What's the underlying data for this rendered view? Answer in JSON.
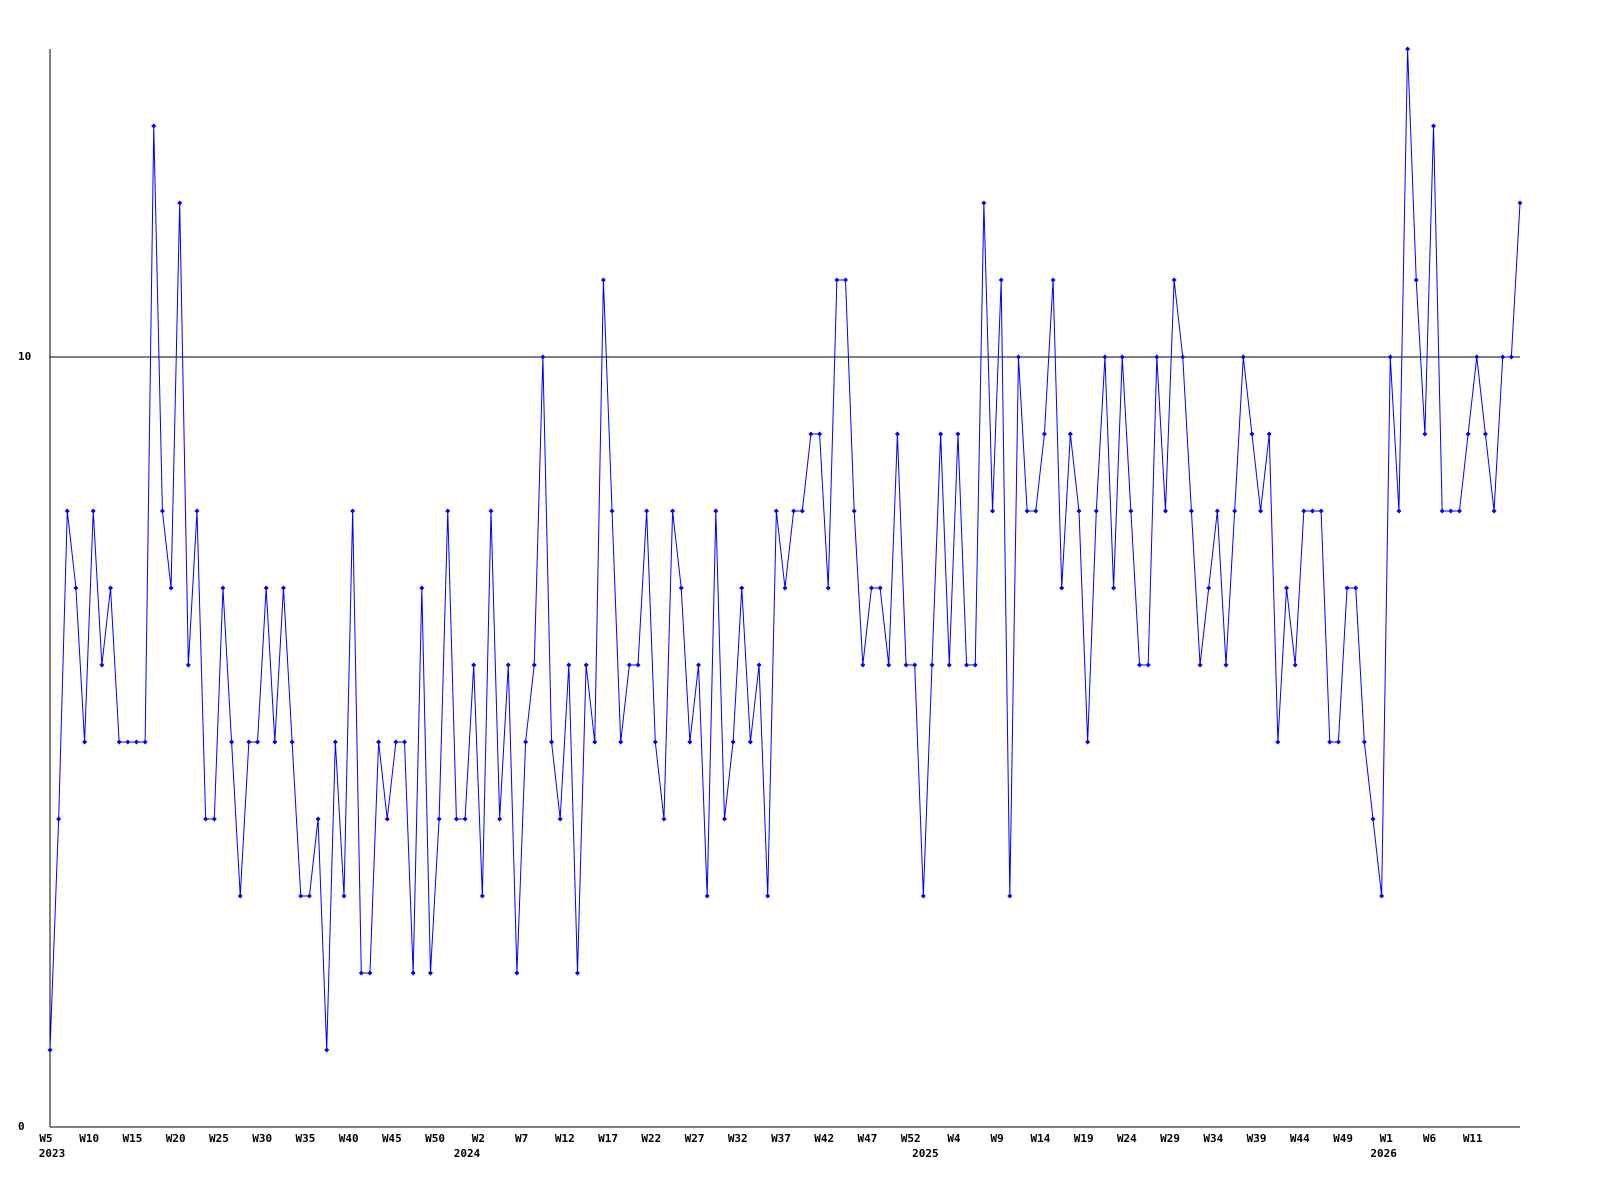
{
  "chart_data": {
    "type": "line",
    "categories": [
      "W5",
      null,
      null,
      null,
      null,
      "W10",
      null,
      null,
      null,
      null,
      "W15",
      null,
      null,
      null,
      null,
      "W20",
      null,
      null,
      null,
      null,
      "W25",
      null,
      null,
      null,
      null,
      "W30",
      null,
      null,
      null,
      null,
      "W35",
      null,
      null,
      null,
      null,
      "W40",
      null,
      null,
      null,
      null,
      "W45",
      null,
      null,
      null,
      null,
      "W50",
      null,
      null,
      null,
      null,
      "W2",
      null,
      null,
      null,
      null,
      "W7",
      null,
      null,
      null,
      null,
      "W12",
      null,
      null,
      null,
      null,
      "W17",
      null,
      null,
      null,
      null,
      "W22",
      null,
      null,
      null,
      null,
      "W27",
      null,
      null,
      null,
      null,
      "W32",
      null,
      null,
      null,
      null,
      "W37",
      null,
      null,
      null,
      null,
      "W42",
      null,
      null,
      null,
      null,
      "W47",
      null,
      null,
      null,
      null,
      "W52",
      null,
      null,
      null,
      null,
      "W4",
      null,
      null,
      null,
      null,
      "W9",
      null,
      null,
      null,
      null,
      "W14",
      null,
      null,
      null,
      null,
      "W19",
      null,
      null,
      null,
      null,
      "W24",
      null,
      null,
      null,
      null,
      "W29",
      null,
      null,
      null,
      null,
      "W34",
      null,
      null,
      null,
      null,
      "W39",
      null,
      null,
      null,
      null,
      "W44",
      null,
      null,
      null,
      null,
      "W49",
      null,
      null,
      null,
      null,
      "W1",
      null,
      null,
      null,
      null,
      "W6",
      null,
      null,
      null,
      null,
      "W11",
      null,
      null,
      null,
      null,
      null
    ],
    "years": [
      "2023",
      null,
      null,
      null,
      null,
      null,
      null,
      null,
      null,
      null,
      null,
      null,
      null,
      null,
      null,
      null,
      null,
      null,
      null,
      null,
      null,
      null,
      null,
      null,
      null,
      null,
      null,
      null,
      null,
      null,
      null,
      null,
      null,
      null,
      null,
      null,
      null,
      null,
      null,
      null,
      null,
      null,
      null,
      null,
      null,
      null,
      null,
      null,
      "2024",
      null,
      null,
      null,
      null,
      null,
      null,
      null,
      null,
      null,
      null,
      null,
      null,
      null,
      null,
      null,
      null,
      null,
      null,
      null,
      null,
      null,
      null,
      null,
      null,
      null,
      null,
      null,
      null,
      null,
      null,
      null,
      null,
      null,
      null,
      null,
      null,
      null,
      null,
      null,
      null,
      null,
      null,
      null,
      null,
      null,
      null,
      null,
      null,
      null,
      null,
      null,
      null,
      "2025",
      null,
      null,
      null,
      null,
      null,
      null,
      null,
      null,
      null,
      null,
      null,
      null,
      null,
      null,
      null,
      null,
      null,
      null,
      null,
      null,
      null,
      null,
      null,
      null,
      null,
      null,
      null,
      null,
      null,
      null,
      null,
      null,
      null,
      null,
      null,
      null,
      null,
      null,
      null,
      null,
      null,
      null,
      null,
      null,
      null,
      null,
      null,
      null,
      null,
      null,
      null,
      null,
      "2026",
      null,
      null,
      null,
      null,
      null,
      null,
      null,
      null,
      null,
      null,
      null,
      null,
      null,
      null,
      null,
      null
    ],
    "series": [
      {
        "color": "#0000ff",
        "values": [
          1,
          4,
          8,
          7,
          5,
          8,
          6,
          7,
          5,
          5,
          5,
          5,
          13,
          8,
          7,
          12,
          6,
          8,
          4,
          4,
          7,
          5,
          3,
          5,
          5,
          7,
          5,
          7,
          5,
          3,
          3,
          4,
          1,
          5,
          3,
          8,
          2,
          2,
          5,
          4,
          5,
          5,
          2,
          7,
          2,
          4,
          8,
          4,
          4,
          6,
          3,
          8,
          4,
          6,
          2,
          5,
          6,
          10,
          5,
          4,
          6,
          2,
          6,
          5,
          11,
          8,
          5,
          6,
          6,
          8,
          5,
          4,
          8,
          7,
          5,
          6,
          3,
          8,
          4,
          5,
          7,
          5,
          6,
          3,
          8,
          7,
          8,
          8,
          9,
          9,
          7,
          11,
          11,
          8,
          6,
          7,
          7,
          6,
          9,
          6,
          6,
          3,
          6,
          9,
          6,
          9,
          6,
          6,
          12,
          8,
          11,
          3,
          10,
          8,
          8,
          9,
          11,
          7,
          9,
          8,
          5,
          8,
          10,
          7,
          10,
          8,
          6,
          6,
          10,
          8,
          11,
          10,
          8,
          6,
          7,
          8,
          6,
          8,
          10,
          9,
          8,
          9,
          5,
          7,
          6,
          8,
          8,
          8,
          5,
          5,
          7,
          7,
          5,
          4,
          3,
          10,
          8,
          14,
          11,
          9,
          13,
          8,
          8,
          8,
          9,
          10,
          9,
          8,
          10,
          10,
          12
        ]
      }
    ],
    "ylim": [
      0,
      14
    ],
    "yticks": [
      0,
      10
    ],
    "grid": true
  }
}
